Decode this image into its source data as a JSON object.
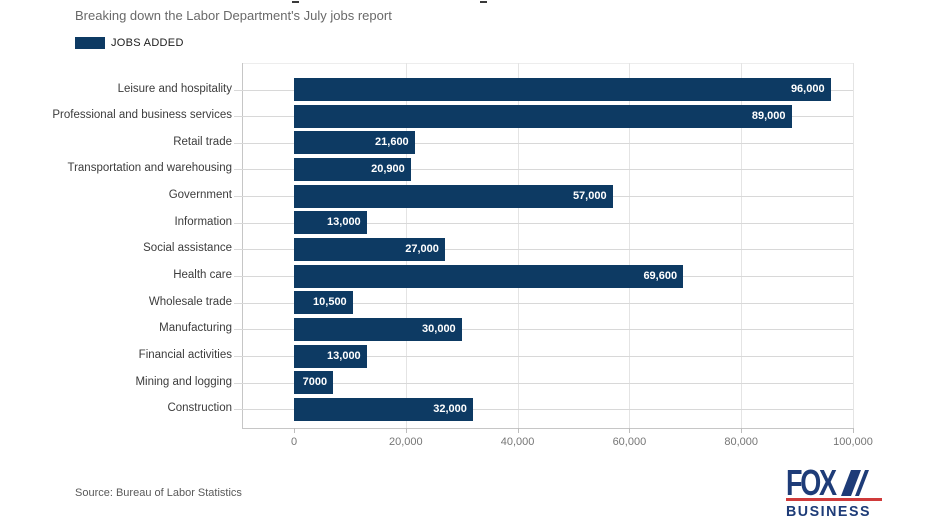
{
  "chart_data": {
    "type": "bar",
    "orientation": "horizontal",
    "subtitle": "Breaking down the Labor Department's July jobs report",
    "legend_label": "JOBS ADDED",
    "legend_position": "top-left",
    "categories": [
      "Leisure and hospitality",
      "Professional and business services",
      "Retail trade",
      "Transportation and warehousing",
      "Government",
      "Information",
      "Social assistance",
      "Health care",
      "Wholesale trade",
      "Manufacturing",
      "Financial activities",
      "Mining and logging",
      "Construction"
    ],
    "values": [
      96000,
      89000,
      21600,
      20900,
      57000,
      13000,
      27000,
      69600,
      10500,
      30000,
      13000,
      7000,
      32000
    ],
    "value_labels": [
      "96,000",
      "89,000",
      "21,600",
      "20,900",
      "57,000",
      "13,000",
      "27,000",
      "69,600",
      "10,500",
      "30,000",
      "13,000",
      "7000",
      "32,000"
    ],
    "xlim": [
      0,
      100000
    ],
    "x_ticks": [
      0,
      20000,
      40000,
      60000,
      80000,
      100000
    ],
    "x_tick_labels": [
      "0",
      "20,000",
      "40,000",
      "60,000",
      "80,000",
      "100,000"
    ],
    "grid": true,
    "bar_color": "#0d3a63"
  },
  "footer": {
    "source": "Source: Bureau of Labor Statistics",
    "logo": {
      "line1": "FOX",
      "line2": "BUSINESS",
      "color_blue": "#1e3c78",
      "color_red": "#cf3a3a"
    }
  }
}
